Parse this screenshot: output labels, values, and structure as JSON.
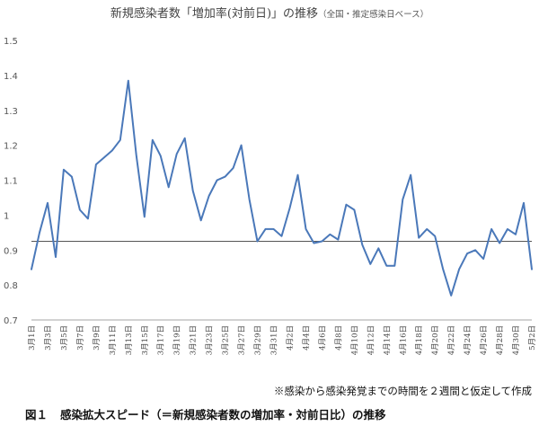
{
  "chart_data": {
    "type": "line",
    "title": "新規感染者数「増加率(対前日)」の推移",
    "subtitle": "（全国・推定感染日ベース）",
    "xlabel": "",
    "ylabel": "",
    "ylim": [
      0.7,
      1.5
    ],
    "yticks": [
      "0.7",
      "0.8",
      "0.9",
      "1",
      "1.1",
      "1.2",
      "1.3",
      "1.4",
      "1.5"
    ],
    "reference_line": 0.925,
    "grid": false,
    "x_tick_labels": [
      "3月1日",
      "3月3日",
      "3月5日",
      "3月7日",
      "3月9日",
      "3月11日",
      "3月13日",
      "3月15日",
      "3月17日",
      "3月19日",
      "3月21日",
      "3月23日",
      "3月25日",
      "3月27日",
      "3月29日",
      "3月31日",
      "4月2日",
      "4月4日",
      "4月6日",
      "4月8日",
      "4月10日",
      "4月12日",
      "4月14日",
      "4月16日",
      "4月18日",
      "4月20日",
      "4月22日",
      "4月24日",
      "4月26日",
      "4月28日",
      "4月30日",
      "5月2日"
    ],
    "series": [
      {
        "color": "#4a78b9",
        "values": [
          0.845,
          0.95,
          1.035,
          0.88,
          1.13,
          1.11,
          1.015,
          0.99,
          1.145,
          1.165,
          1.185,
          1.215,
          1.385,
          1.17,
          0.995,
          1.215,
          1.17,
          1.08,
          1.175,
          1.22,
          1.07,
          0.985,
          1.055,
          1.1,
          1.11,
          1.135,
          1.2,
          1.045,
          0.925,
          0.96,
          0.96,
          0.94,
          1.02,
          1.115,
          0.96,
          0.92,
          0.925,
          0.945,
          0.93,
          1.03,
          1.015,
          0.915,
          0.86,
          0.905,
          0.855,
          0.855,
          1.045,
          1.115,
          0.935,
          0.96,
          0.94,
          0.845,
          0.77,
          0.845,
          0.89,
          0.9,
          0.875,
          0.96,
          0.92,
          0.96,
          0.945,
          1.035,
          0.845
        ]
      }
    ]
  },
  "note": "※感染から感染発覚までの時間を２週間と仮定して作成",
  "caption": {
    "number": "図１",
    "text": "感染拡大スピード（＝新規感染者数の増加率・対前日比）の推移"
  }
}
